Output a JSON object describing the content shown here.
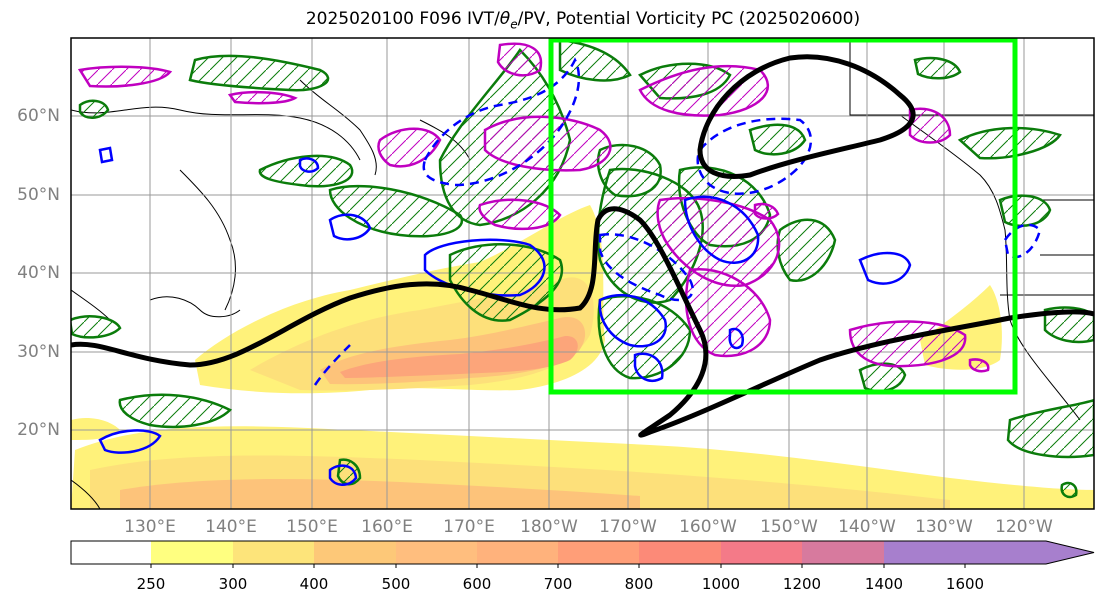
{
  "title_pre": "2025020100 F096 IVT/",
  "title_theta": "θ",
  "title_sub": "e",
  "title_post": "/PV, Potential Vorticity PC (2025020600)",
  "lat_labels": [
    "60°N",
    "50°N",
    "40°N",
    "30°N",
    "20°N"
  ],
  "lon_labels": [
    "130°E",
    "140°E",
    "150°E",
    "160°E",
    "170°E",
    "180°W",
    "170°W",
    "160°W",
    "150°W",
    "140°W",
    "130°W",
    "120°W"
  ],
  "colorbar": {
    "ticks": [
      "250",
      "300",
      "400",
      "500",
      "600",
      "700",
      "800",
      "1000",
      "1200",
      "1400",
      "1600"
    ],
    "colors": [
      "#ffffff",
      "#ffff80",
      "#fde47a",
      "#fdc878",
      "#ffbe7e",
      "#ffb27c",
      "#ff9e78",
      "#fc8a78",
      "#f47a88",
      "#d77a9e",
      "#a77fcd"
    ]
  },
  "colors": {
    "box": "#00ff00",
    "contour_black": "#000000",
    "contour_green": "#0b7c0b",
    "contour_magenta": "#c000c0",
    "contour_blue": "#0000ff"
  }
}
